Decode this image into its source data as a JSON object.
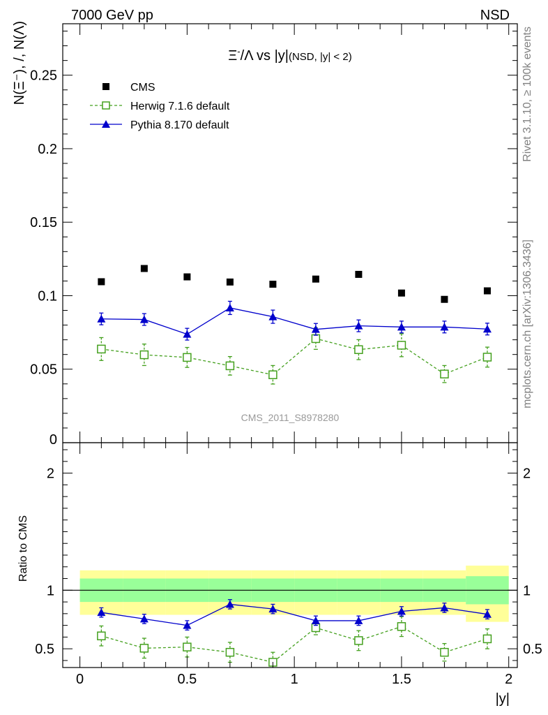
{
  "header": {
    "energy_label": "7000 GeV pp",
    "process_label": "NSD",
    "side_label_rivet": "Rivet 3.1.10, ≥ 100k events",
    "side_label_mcplots": "mcplots.cern.ch [arXiv:1306.3436]"
  },
  "chart_data": [
    {
      "type": "scatter",
      "panel": "main",
      "title": "Ξ⁻/Λ vs |y|(NSD, |y| < 2)",
      "ylabel": "N(Ξ⁻), /, N(Λ)",
      "xlabel": "",
      "xlim": [
        -0.08,
        2.04
      ],
      "ylim": [
        0,
        0.285
      ],
      "y_ticks": [
        0,
        0.05,
        0.1,
        0.15,
        0.2,
        0.25
      ],
      "y_tick_labels": [
        "0",
        "0.05",
        "0.1",
        "0.15",
        "0.2",
        "0.25"
      ],
      "x": [
        0.1,
        0.3,
        0.5,
        0.7,
        0.9,
        1.1,
        1.3,
        1.5,
        1.7,
        1.9
      ],
      "series": [
        {
          "name": "CMS",
          "style": "data-square",
          "color": "#000000",
          "values": [
            0.1095,
            0.1185,
            0.1128,
            0.1093,
            0.1078,
            0.1113,
            0.1145,
            0.1018,
            0.0975,
            0.1033
          ]
        },
        {
          "name": "Herwig 7.1.6 default",
          "style": "dashed-open-square",
          "color": "#44a01e",
          "values": [
            0.0637,
            0.0598,
            0.058,
            0.0523,
            0.0462,
            0.0708,
            0.0633,
            0.0663,
            0.0467,
            0.0582
          ],
          "errors": [
            0.0078,
            0.0073,
            0.0068,
            0.0063,
            0.0063,
            0.0073,
            0.0068,
            0.0078,
            0.0058,
            0.0068
          ]
        },
        {
          "name": "Pythia 8.170 default",
          "style": "solid-triangle",
          "color": "#0000cc",
          "values": [
            0.0842,
            0.0838,
            0.0738,
            0.0917,
            0.0857,
            0.0771,
            0.0795,
            0.0787,
            0.0787,
            0.0773
          ],
          "errors": [
            0.004,
            0.004,
            0.004,
            0.0045,
            0.0045,
            0.004,
            0.004,
            0.004,
            0.004,
            0.004
          ]
        }
      ],
      "legend_position": "top-left",
      "reference_label": "CMS_2011_S8978280"
    },
    {
      "type": "scatter",
      "panel": "ratio",
      "ylabel": "Ratio to CMS",
      "xlabel": "|y|",
      "xlim": [
        -0.08,
        2.04
      ],
      "ylim": [
        0.34,
        2.26
      ],
      "x_ticks": [
        0,
        0.5,
        1,
        1.5,
        2
      ],
      "x_tick_labels": [
        "0",
        "0.5",
        "1",
        "1.5",
        "2"
      ],
      "y_ticks": [
        0.5,
        1,
        2
      ],
      "y_tick_labels": [
        "0.5",
        "1",
        "2"
      ],
      "bins": [
        [
          0.0,
          0.2
        ],
        [
          0.2,
          0.4
        ],
        [
          0.4,
          0.6
        ],
        [
          0.6,
          0.8
        ],
        [
          0.8,
          1.0
        ],
        [
          1.0,
          1.2
        ],
        [
          1.2,
          1.4
        ],
        [
          1.4,
          1.6
        ],
        [
          1.6,
          1.8
        ],
        [
          1.8,
          2.0
        ]
      ],
      "band_stat": [
        [
          0.9,
          1.1
        ],
        [
          0.9,
          1.1
        ],
        [
          0.9,
          1.1
        ],
        [
          0.9,
          1.1
        ],
        [
          0.9,
          1.1
        ],
        [
          0.9,
          1.1
        ],
        [
          0.9,
          1.1
        ],
        [
          0.9,
          1.1
        ],
        [
          0.9,
          1.1
        ],
        [
          0.88,
          1.12
        ]
      ],
      "band_total": [
        [
          0.79,
          1.17
        ],
        [
          0.79,
          1.17
        ],
        [
          0.79,
          1.17
        ],
        [
          0.79,
          1.17
        ],
        [
          0.79,
          1.17
        ],
        [
          0.79,
          1.17
        ],
        [
          0.79,
          1.17
        ],
        [
          0.79,
          1.17
        ],
        [
          0.79,
          1.17
        ],
        [
          0.73,
          1.21
        ]
      ],
      "band_colors": {
        "stat": "#99ff99",
        "total": "#ffff99"
      },
      "x": [
        0.1,
        0.3,
        0.5,
        0.7,
        0.9,
        1.1,
        1.3,
        1.5,
        1.7,
        1.9
      ],
      "series": [
        {
          "name": "Herwig 7.1.6 default",
          "color": "#44a01e",
          "values": [
            0.61,
            0.505,
            0.515,
            0.47,
            0.385,
            0.68,
            0.57,
            0.69,
            0.47,
            0.585
          ],
          "errors": [
            0.085,
            0.085,
            0.085,
            0.085,
            0.085,
            0.06,
            0.085,
            0.085,
            0.075,
            0.085
          ]
        },
        {
          "name": "Pythia 8.170 default",
          "color": "#0000cc",
          "values": [
            0.81,
            0.755,
            0.7,
            0.88,
            0.84,
            0.74,
            0.74,
            0.82,
            0.85,
            0.795
          ],
          "errors": [
            0.04,
            0.04,
            0.04,
            0.04,
            0.04,
            0.04,
            0.04,
            0.04,
            0.04,
            0.04
          ]
        }
      ]
    }
  ]
}
